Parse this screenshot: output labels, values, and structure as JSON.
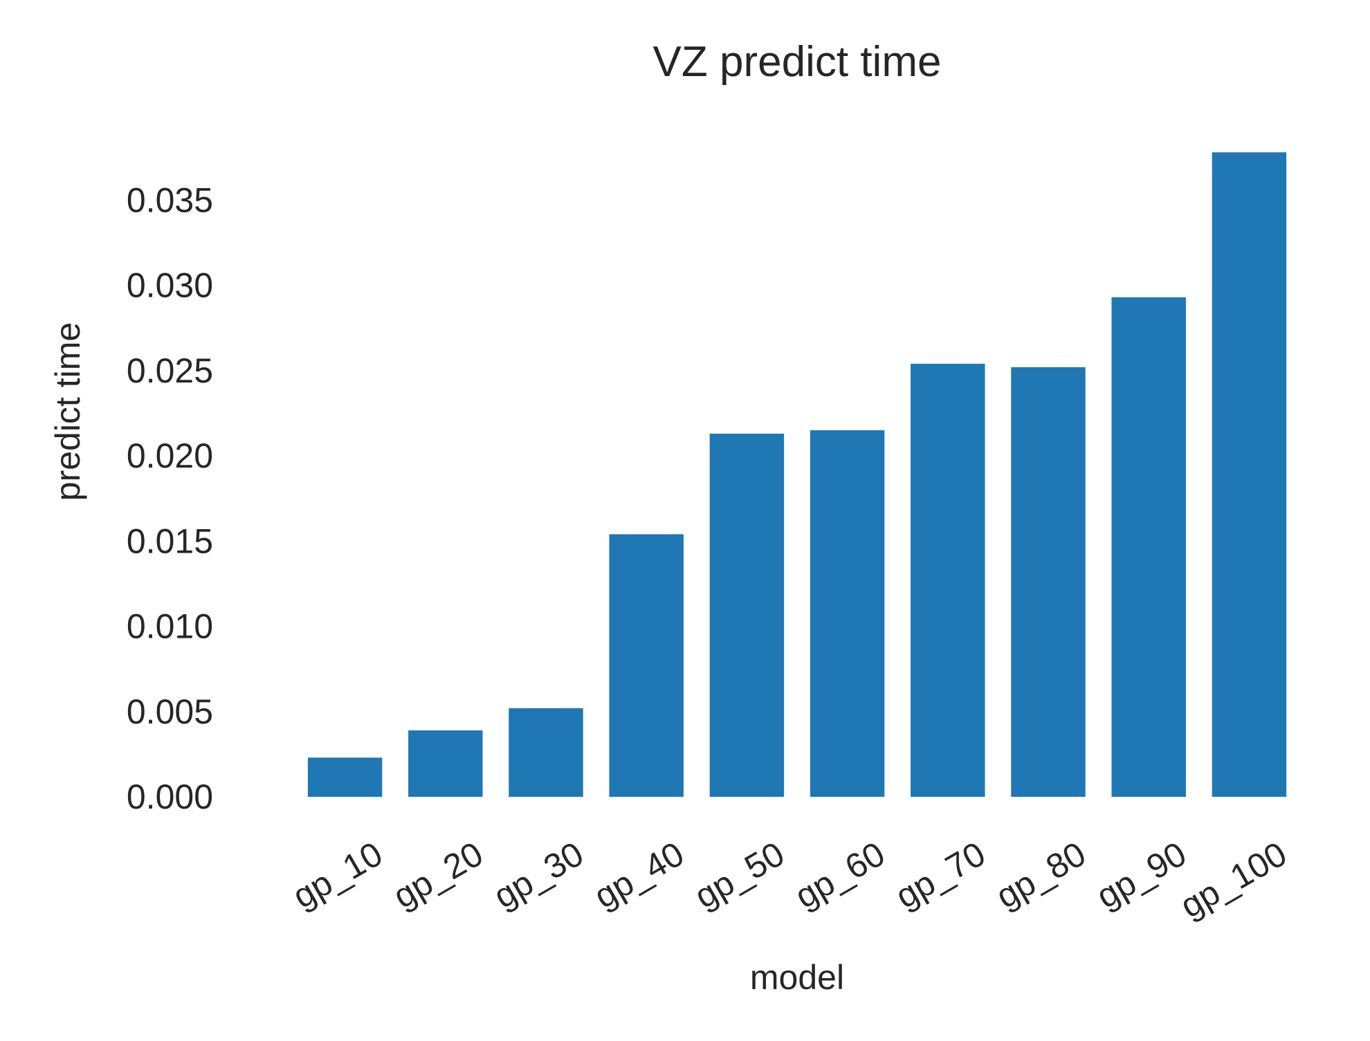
{
  "chart_data": {
    "type": "bar",
    "title": "VZ predict time",
    "xlabel": "model",
    "ylabel": "predict time",
    "categories": [
      "gp_10",
      "gp_20",
      "gp_30",
      "gp_40",
      "gp_50",
      "gp_60",
      "gp_70",
      "gp_80",
      "gp_90",
      "gp_100"
    ],
    "values": [
      0.0023,
      0.0039,
      0.0052,
      0.0154,
      0.0213,
      0.0215,
      0.0254,
      0.0252,
      0.0293,
      0.0378
    ],
    "yticks": [
      "0.000",
      "0.005",
      "0.010",
      "0.015",
      "0.020",
      "0.025",
      "0.030",
      "0.035"
    ],
    "ylim": [
      0,
      0.038
    ],
    "grid": false,
    "legend": "none",
    "bar_color": "#1f77b4",
    "background_color": "#ffffff",
    "text_color": "#262626"
  }
}
